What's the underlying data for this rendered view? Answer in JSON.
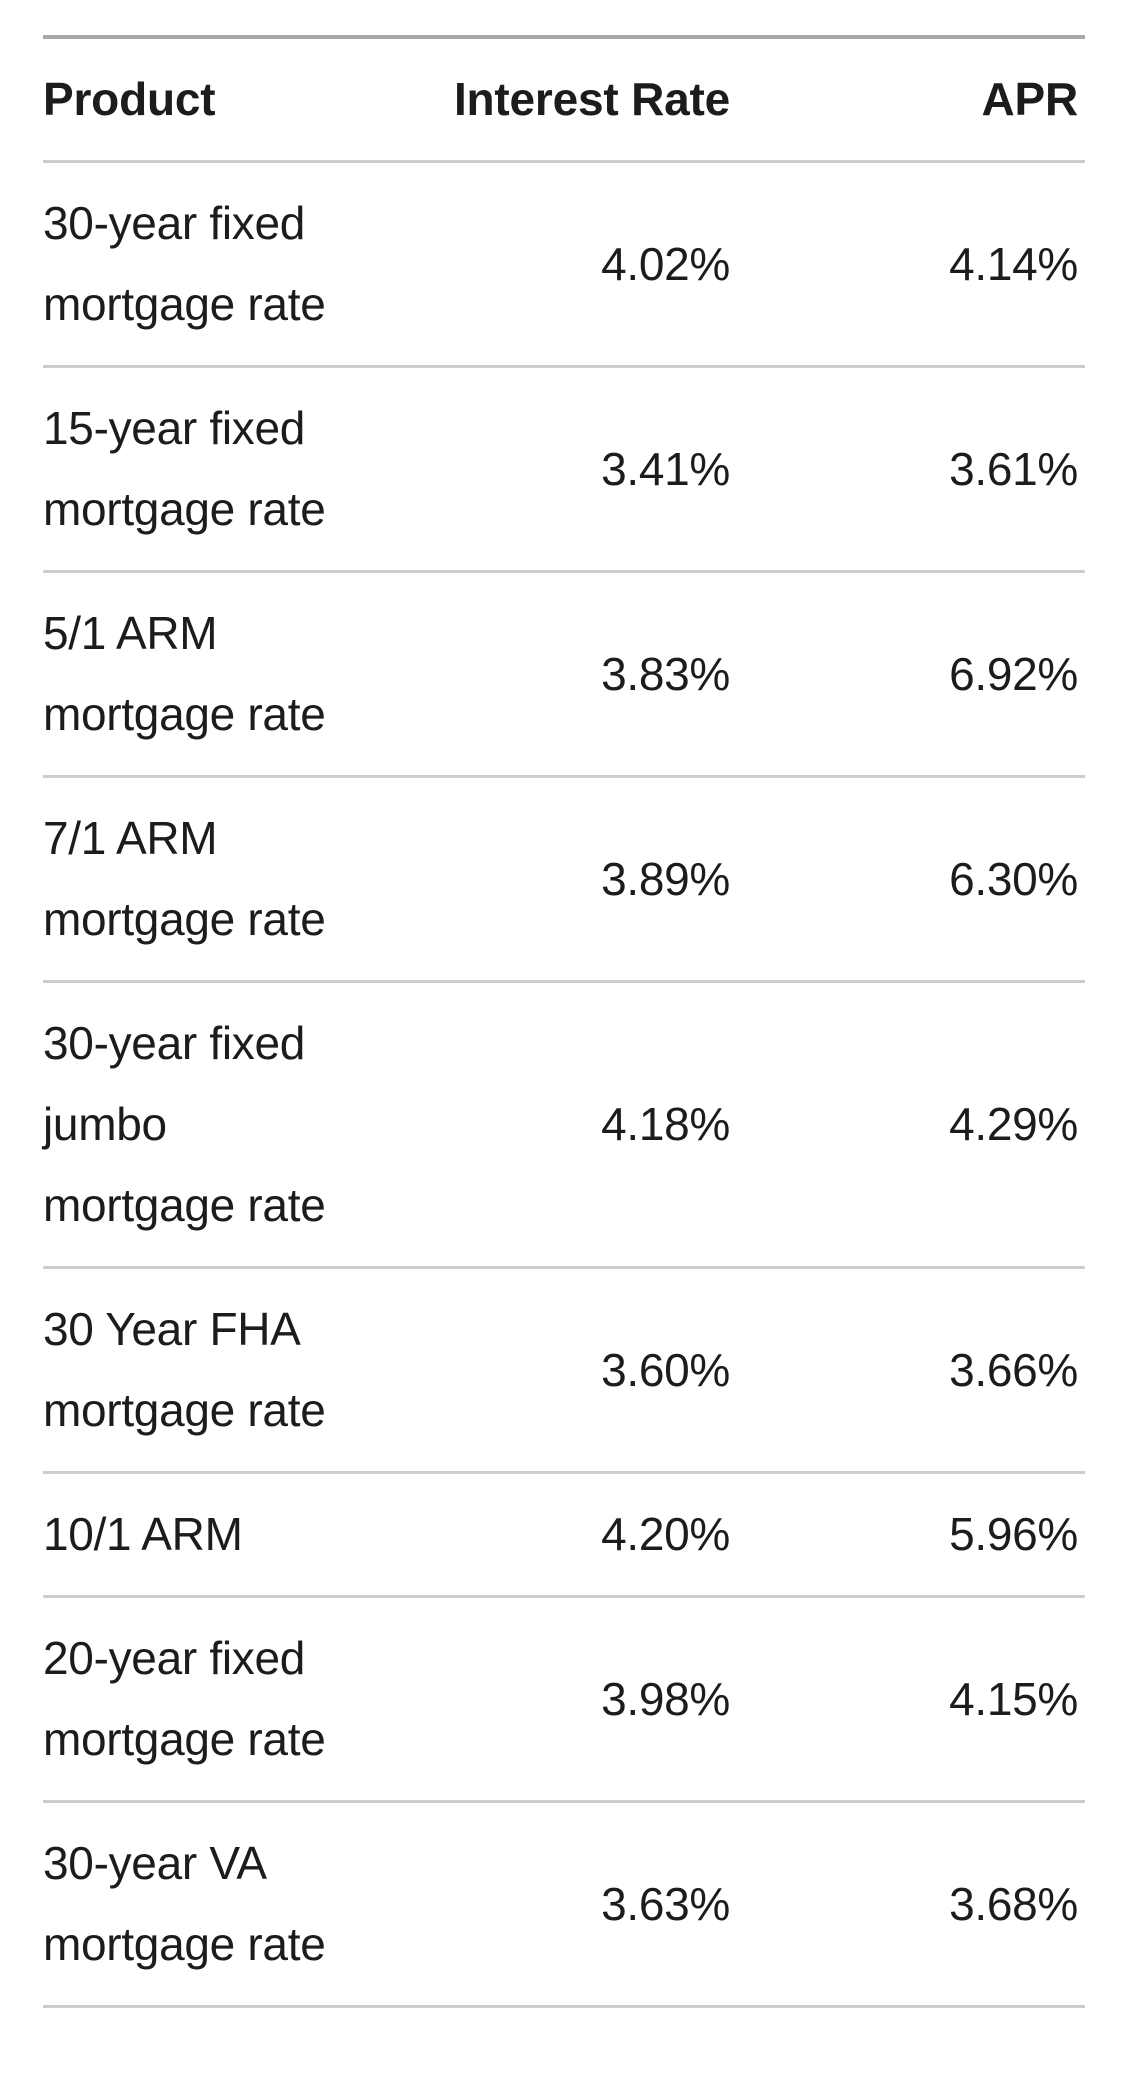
{
  "table": {
    "columns": [
      "Product",
      "Interest Rate",
      "APR"
    ],
    "rows": [
      {
        "product_lines": [
          "30-year fixed",
          "mortgage rate"
        ],
        "interest_rate": "4.02%",
        "apr": "4.14%"
      },
      {
        "product_lines": [
          "15-year fixed",
          "mortgage rate"
        ],
        "interest_rate": "3.41%",
        "apr": "3.61%"
      },
      {
        "product_lines": [
          "5/1 ARM",
          "mortgage rate"
        ],
        "interest_rate": "3.83%",
        "apr": "6.92%"
      },
      {
        "product_lines": [
          "7/1 ARM",
          "mortgage rate"
        ],
        "interest_rate": "3.89%",
        "apr": "6.30%"
      },
      {
        "product_lines": [
          "30-year fixed",
          "jumbo",
          "mortgage rate"
        ],
        "interest_rate": "4.18%",
        "apr": "4.29%"
      },
      {
        "product_lines": [
          "30 Year FHA",
          "mortgage rate"
        ],
        "interest_rate": "3.60%",
        "apr": "3.66%"
      },
      {
        "product_lines": [
          "10/1 ARM"
        ],
        "interest_rate": "4.20%",
        "apr": "5.96%"
      },
      {
        "product_lines": [
          "20-year fixed",
          "mortgage rate"
        ],
        "interest_rate": "3.98%",
        "apr": "4.15%"
      },
      {
        "product_lines": [
          "30-year VA",
          "mortgage rate"
        ],
        "interest_rate": "3.63%",
        "apr": "3.68%"
      }
    ]
  },
  "colors": {
    "background": "#ffffff",
    "text": "#1c1c1c",
    "top_border": "#a7a7ac",
    "divider": "#cdcdd2"
  }
}
